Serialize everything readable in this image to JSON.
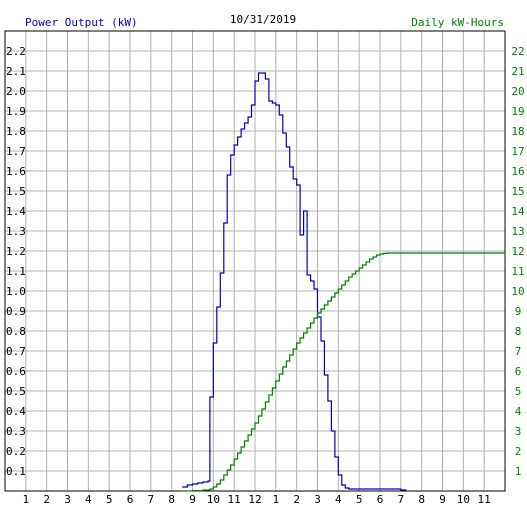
{
  "colors": {
    "background": "#ffffff",
    "grid": "#b0b0b0",
    "frame": "#000000",
    "power": "#0000c0",
    "energy": "#008000"
  },
  "chart_data": {
    "type": "line",
    "title": "10/31/2019",
    "ylabel_left": "Power Output (kW)",
    "ylabel_right": "Daily kW-Hours",
    "x_tick_labels": [
      "1",
      "2",
      "3",
      "4",
      "5",
      "6",
      "7",
      "8",
      "9",
      "10",
      "11",
      "12",
      "1",
      "2",
      "3",
      "4",
      "5",
      "6",
      "7",
      "8",
      "9",
      "10",
      "11"
    ],
    "x_range_hours": [
      0,
      24
    ],
    "ylim_left": [
      0,
      2.3
    ],
    "y_ticks_left": [
      "0.1",
      "0.2",
      "0.3",
      "0.4",
      "0.5",
      "0.6",
      "0.7",
      "0.8",
      "0.9",
      "1.0",
      "1.1",
      "1.2",
      "1.3",
      "1.4",
      "1.5",
      "1.6",
      "1.7",
      "1.8",
      "1.9",
      "2.0",
      "2.1",
      "2.2"
    ],
    "ylim_right": [
      0,
      23
    ],
    "y_ticks_right": [
      "1",
      "2",
      "3",
      "4",
      "5",
      "6",
      "7",
      "8",
      "9",
      "10",
      "11",
      "12",
      "13",
      "14",
      "15",
      "16",
      "17",
      "18",
      "19",
      "20",
      "21",
      "22"
    ],
    "grid": true,
    "series": [
      {
        "name": "Power Output (kW)",
        "axis": "left",
        "step": true,
        "x": [
          8.5,
          8.75,
          9.0,
          9.25,
          9.5,
          9.75,
          9.833,
          10.0,
          10.167,
          10.333,
          10.5,
          10.667,
          10.833,
          11.0,
          11.167,
          11.333,
          11.5,
          11.667,
          11.833,
          12.0,
          12.167,
          12.333,
          12.5,
          12.667,
          12.833,
          13.0,
          13.167,
          13.333,
          13.5,
          13.667,
          13.833,
          14.0,
          14.167,
          14.333,
          14.5,
          14.667,
          14.833,
          15.0,
          15.167,
          15.333,
          15.5,
          15.667,
          15.833,
          16.0,
          16.167,
          16.333,
          16.5,
          16.667,
          16.833,
          17.0,
          17.167,
          17.333,
          17.5,
          17.667,
          17.833,
          18.0,
          18.167,
          18.333,
          18.5,
          18.75,
          19.0,
          19.25
        ],
        "y": [
          0.02,
          0.03,
          0.035,
          0.04,
          0.045,
          0.05,
          0.47,
          0.74,
          0.92,
          1.09,
          1.34,
          1.58,
          1.68,
          1.73,
          1.77,
          1.81,
          1.84,
          1.87,
          1.93,
          2.05,
          2.09,
          2.09,
          2.06,
          1.95,
          1.94,
          1.93,
          1.88,
          1.79,
          1.72,
          1.62,
          1.56,
          1.53,
          1.28,
          1.4,
          1.08,
          1.05,
          1.01,
          0.87,
          0.75,
          0.58,
          0.45,
          0.3,
          0.17,
          0.08,
          0.03,
          0.015,
          0.01,
          0.01,
          0.01,
          0.01,
          0.01,
          0.01,
          0.01,
          0.01,
          0.01,
          0.01,
          0.01,
          0.01,
          0.01,
          0.01,
          0.005,
          0.0
        ]
      },
      {
        "name": "Daily kW-Hours",
        "axis": "right",
        "step": true,
        "x": [
          8.5,
          9.0,
          9.5,
          9.833,
          10.0,
          10.167,
          10.333,
          10.5,
          10.667,
          10.833,
          11.0,
          11.167,
          11.333,
          11.5,
          11.667,
          11.833,
          12.0,
          12.167,
          12.333,
          12.5,
          12.667,
          12.833,
          13.0,
          13.167,
          13.333,
          13.5,
          13.667,
          13.833,
          14.0,
          14.167,
          14.333,
          14.5,
          14.667,
          14.833,
          15.0,
          15.167,
          15.333,
          15.5,
          15.667,
          15.833,
          16.0,
          16.167,
          16.333,
          16.5,
          16.667,
          16.833,
          17.0,
          17.167,
          17.333,
          17.5,
          17.667,
          17.833,
          18.0,
          18.167,
          18.333,
          18.5,
          19.0,
          20.0,
          21.0,
          22.0,
          23.0,
          24.0
        ],
        "y": [
          0.0,
          0.02,
          0.05,
          0.1,
          0.2,
          0.35,
          0.55,
          0.8,
          1.05,
          1.3,
          1.6,
          1.9,
          2.2,
          2.5,
          2.8,
          3.1,
          3.4,
          3.75,
          4.1,
          4.45,
          4.8,
          5.15,
          5.5,
          5.85,
          6.2,
          6.5,
          6.8,
          7.1,
          7.4,
          7.65,
          7.9,
          8.15,
          8.4,
          8.65,
          8.9,
          9.1,
          9.3,
          9.5,
          9.7,
          9.9,
          10.1,
          10.3,
          10.5,
          10.7,
          10.85,
          11.0,
          11.15,
          11.3,
          11.45,
          11.6,
          11.7,
          11.8,
          11.85,
          11.88,
          11.9,
          11.9,
          11.9,
          11.9,
          11.9,
          11.9,
          11.9,
          11.9
        ]
      }
    ]
  }
}
